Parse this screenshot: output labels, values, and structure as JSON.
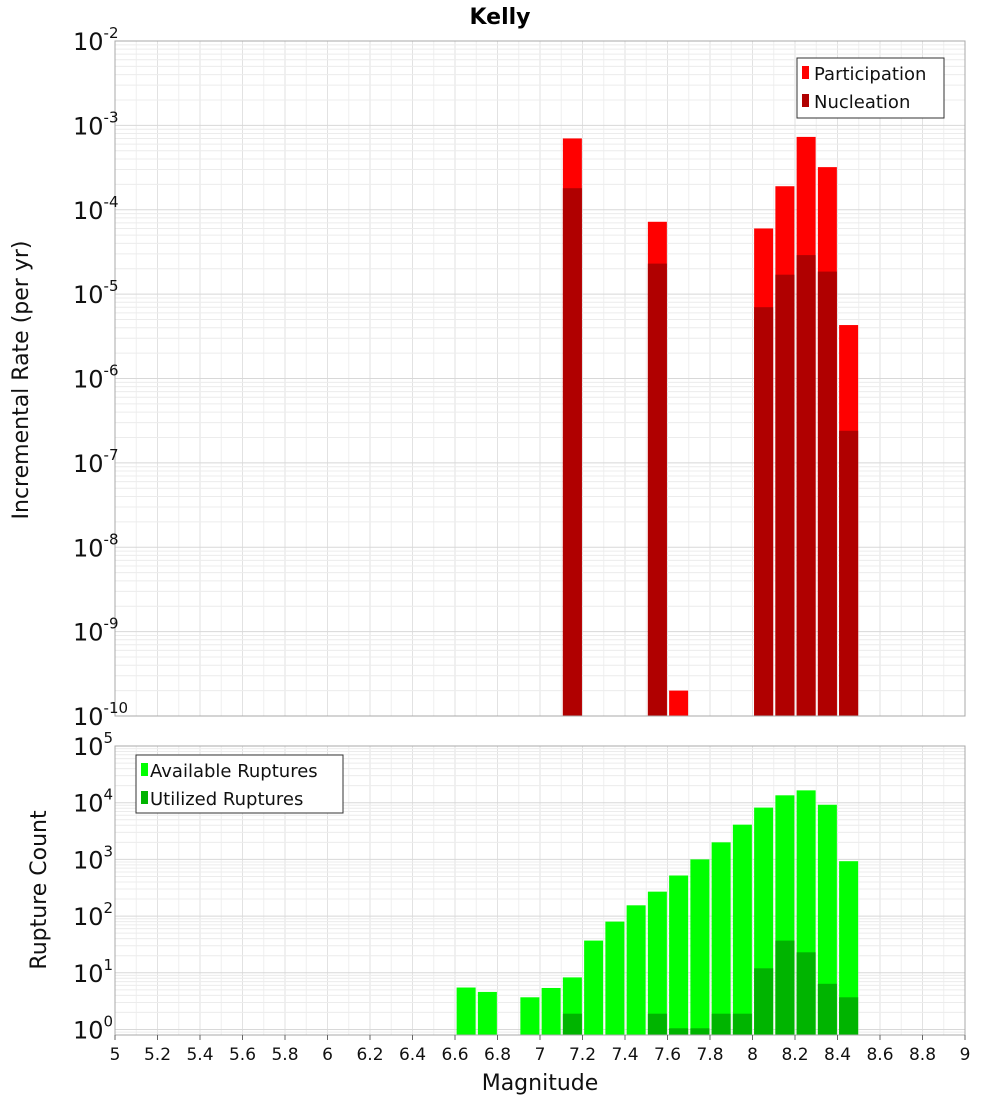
{
  "chart_data": [
    {
      "type": "bar",
      "title": "Kelly",
      "ylabel": "Incremental Rate (per yr)",
      "yscale": "log",
      "ylim": [
        1e-10,
        0.01
      ],
      "xlim": [
        5,
        9
      ],
      "grid": true,
      "legend_position": "top-right",
      "series": [
        {
          "name": "Participation",
          "color": "#ff0000",
          "points": [
            [
              7.15,
              0.0007
            ],
            [
              7.55,
              7.2e-05
            ],
            [
              7.65,
              2e-10
            ],
            [
              8.05,
              6e-05
            ],
            [
              8.15,
              0.00019
            ],
            [
              8.25,
              0.00073
            ],
            [
              8.35,
              0.00032
            ],
            [
              8.45,
              4.3e-06
            ]
          ]
        },
        {
          "name": "Nucleation",
          "color": "#b00000",
          "points": [
            [
              7.15,
              0.00018
            ],
            [
              7.55,
              2.3e-05
            ],
            [
              8.05,
              7e-06
            ],
            [
              8.15,
              1.7e-05
            ],
            [
              8.25,
              2.9e-05
            ],
            [
              8.35,
              1.85e-05
            ],
            [
              8.45,
              2.4e-07
            ]
          ]
        }
      ]
    },
    {
      "type": "bar",
      "xlabel": "Magnitude",
      "ylabel": "Rupture Count",
      "yscale": "log",
      "ylim": [
        0.8,
        100000
      ],
      "xlim": [
        5,
        9
      ],
      "grid": true,
      "legend_position": "top-left",
      "series": [
        {
          "name": "Available Ruptures",
          "color": "#00ff00",
          "points": [
            [
              6.65,
              5.5
            ],
            [
              6.75,
              4.6
            ],
            [
              6.95,
              3.7
            ],
            [
              7.05,
              5.4
            ],
            [
              7.15,
              8.3
            ],
            [
              7.25,
              37
            ],
            [
              7.35,
              80
            ],
            [
              7.45,
              155
            ],
            [
              7.55,
              270
            ],
            [
              7.65,
              520
            ],
            [
              7.75,
              1000
            ],
            [
              7.85,
              2000
            ],
            [
              7.95,
              4100
            ],
            [
              8.05,
              8200
            ],
            [
              8.15,
              13500
            ],
            [
              8.25,
              16500
            ],
            [
              8.35,
              9200
            ],
            [
              8.45,
              930
            ]
          ]
        },
        {
          "name": "Utilized Ruptures",
          "color": "#00b400",
          "points": [
            [
              7.15,
              1.9
            ],
            [
              7.55,
              1.9
            ],
            [
              7.65,
              1.05
            ],
            [
              7.75,
              1.05
            ],
            [
              7.85,
              1.9
            ],
            [
              7.95,
              1.9
            ],
            [
              8.05,
              12
            ],
            [
              8.15,
              37
            ],
            [
              8.25,
              23
            ],
            [
              8.35,
              6.4
            ],
            [
              8.45,
              3.7
            ]
          ]
        }
      ]
    }
  ],
  "x_ticks": [
    "5",
    "5.2",
    "5.4",
    "5.6",
    "5.8",
    "6",
    "6.2",
    "6.4",
    "6.6",
    "6.8",
    "7",
    "7.2",
    "7.4",
    "7.6",
    "7.8",
    "8",
    "8.2",
    "8.4",
    "8.6",
    "8.8",
    "9"
  ],
  "top_y_exponents": [
    "-2",
    "-3",
    "-4",
    "-5",
    "-6",
    "-7",
    "-8",
    "-9",
    "-10"
  ],
  "bottom_y_exponents": [
    "5",
    "4",
    "3",
    "2",
    "1",
    "0"
  ],
  "tick_base": "10"
}
